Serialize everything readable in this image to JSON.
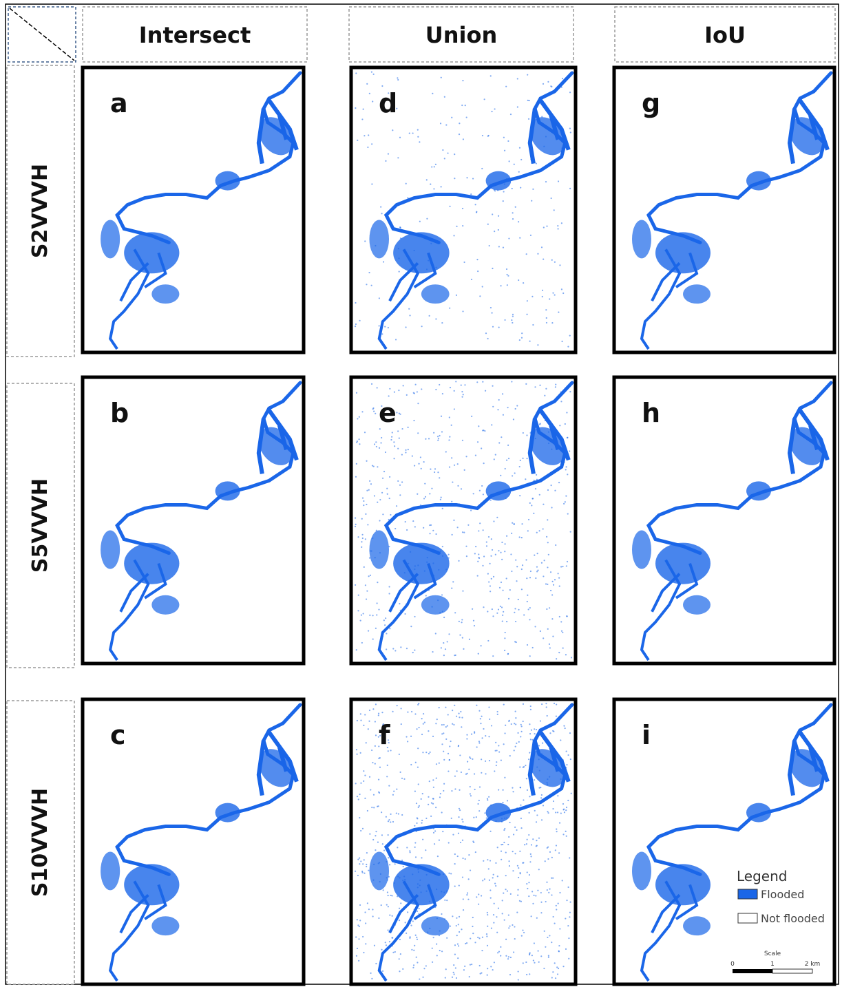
{
  "columns": [
    "Intersect",
    "Union",
    "IoU"
  ],
  "rows": [
    "S2VVVH",
    "S5VVVH",
    "S10VVVH"
  ],
  "panels": [
    [
      "a",
      "d",
      "g"
    ],
    [
      "b",
      "e",
      "h"
    ],
    [
      "c",
      "f",
      "i"
    ]
  ],
  "legend": {
    "title": "Legend",
    "items": [
      "Flooded",
      "Not flooded"
    ],
    "scale_title": "Scale",
    "scale_labels": [
      "0",
      "1",
      "2 km"
    ]
  }
}
